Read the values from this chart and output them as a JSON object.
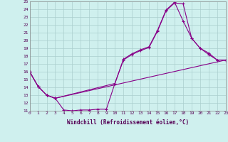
{
  "xlabel": "Windchill (Refroidissement éolien,°C)",
  "background_color": "#cff0ee",
  "line_color": "#880088",
  "grid_color": "#aacece",
  "xmin": 0,
  "xmax": 23,
  "ymin": 11,
  "ymax": 25,
  "line1_x": [
    0,
    1,
    2,
    3,
    4,
    5,
    6,
    7,
    8,
    9,
    10,
    11,
    12,
    13,
    14,
    15,
    16,
    17,
    18,
    19,
    20,
    21,
    22,
    23
  ],
  "line1_y": [
    16.0,
    14.1,
    13.0,
    12.6,
    11.1,
    11.0,
    11.1,
    11.1,
    11.2,
    11.2,
    14.5,
    17.5,
    18.2,
    18.7,
    19.1,
    21.2,
    23.8,
    24.8,
    24.7,
    20.3,
    19.0,
    18.2,
    17.5,
    17.5
  ],
  "line2_x": [
    0,
    1,
    2,
    3,
    10,
    11,
    12,
    13,
    14,
    15,
    16,
    17,
    18,
    19,
    20,
    21,
    22,
    23
  ],
  "line2_y": [
    16.0,
    14.1,
    13.0,
    12.6,
    14.5,
    17.6,
    18.3,
    18.8,
    19.2,
    21.3,
    23.9,
    24.9,
    22.5,
    20.3,
    19.0,
    18.4,
    17.5,
    17.5
  ],
  "line3_x": [
    0,
    1,
    2,
    3,
    23
  ],
  "line3_y": [
    16.0,
    14.1,
    13.0,
    12.6,
    17.5
  ]
}
